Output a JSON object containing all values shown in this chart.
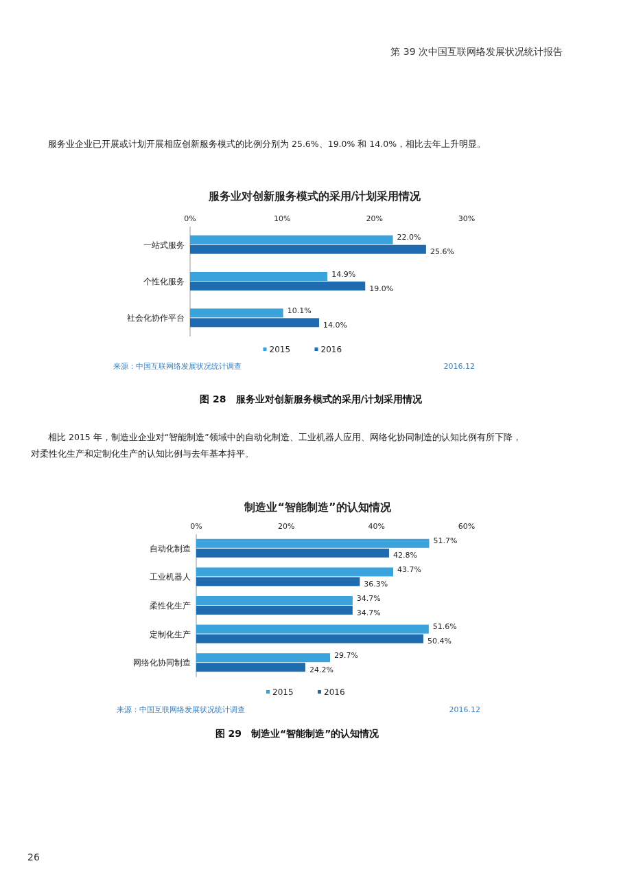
{
  "chart_data": [
    {
      "type": "bar",
      "orientation": "horizontal",
      "title": "服务业对创新服务模式的采用/计划采用情况",
      "categories": [
        "一站式服务",
        "个性化服务",
        "社会化协作平台"
      ],
      "series": [
        {
          "name": "2015",
          "color": "#3ba3dc",
          "values": [
            22.0,
            14.9,
            10.1
          ],
          "value_labels": [
            "22.0%",
            "14.9%",
            "10.1%"
          ]
        },
        {
          "name": "2016",
          "color": "#1e6bb0",
          "values": [
            25.6,
            19.0,
            14.0
          ],
          "value_labels": [
            "25.6%",
            "19.0%",
            "14.0%"
          ]
        }
      ],
      "xlim": [
        0,
        30
      ],
      "xticks": [
        {
          "value": 0,
          "label": "0%"
        },
        {
          "value": 10,
          "label": "10%"
        },
        {
          "value": 20,
          "label": "20%"
        },
        {
          "value": 30,
          "label": "30%"
        }
      ],
      "grid": false,
      "legend": "bottom",
      "annotations": [
        "第 39 次中国互联网络发展状况统计报告",
        "服务业企业已开展或计划开展相应创新服务模式的比例分别为 25.6%、19.0% 和 14.0%，相比去年上升明显。",
        "来源：中国互联网络发展状况统计调查",
        "2016.12",
        "图 28　服务业对创新服务模式的采用/计划采用情况"
      ]
    },
    {
      "type": "bar",
      "orientation": "horizontal",
      "title": "制造业“智能制造”的认知情况",
      "categories": [
        "自动化制造",
        "工业机器人",
        "柔性化生产",
        "定制化生产",
        "网络化协同制造"
      ],
      "series": [
        {
          "name": "2015",
          "color": "#3ba3dc",
          "values": [
            51.7,
            43.7,
            34.7,
            51.6,
            29.7
          ],
          "value_labels": [
            "51.7%",
            "43.7%",
            "34.7%",
            "51.6%",
            "29.7%"
          ]
        },
        {
          "name": "2016",
          "color": "#1e6bb0",
          "values": [
            42.8,
            36.3,
            34.7,
            50.4,
            24.2
          ],
          "value_labels": [
            "42.8%",
            "36.3%",
            "34.7%",
            "50.4%",
            "24.2%"
          ]
        }
      ],
      "xlim": [
        0,
        60
      ],
      "xticks": [
        {
          "value": 0,
          "label": "0%"
        },
        {
          "value": 20,
          "label": "20%"
        },
        {
          "value": 40,
          "label": "40%"
        },
        {
          "value": 60,
          "label": "60%"
        }
      ],
      "grid": false,
      "legend": "bottom",
      "annotations": [
        "相比 2015 年，制造业企业对“智能制造”领域中的自动化制造、工业机器人应用、网络化协同制造的认知比例有所下降，",
        "对柔性化生产和定制化生产的认知比例与去年基本持平。",
        "来源：中国互联网络发展状况统计调查",
        "2016.12",
        "图 29　制造业“智能制造”的认知情况",
        "26"
      ]
    }
  ]
}
